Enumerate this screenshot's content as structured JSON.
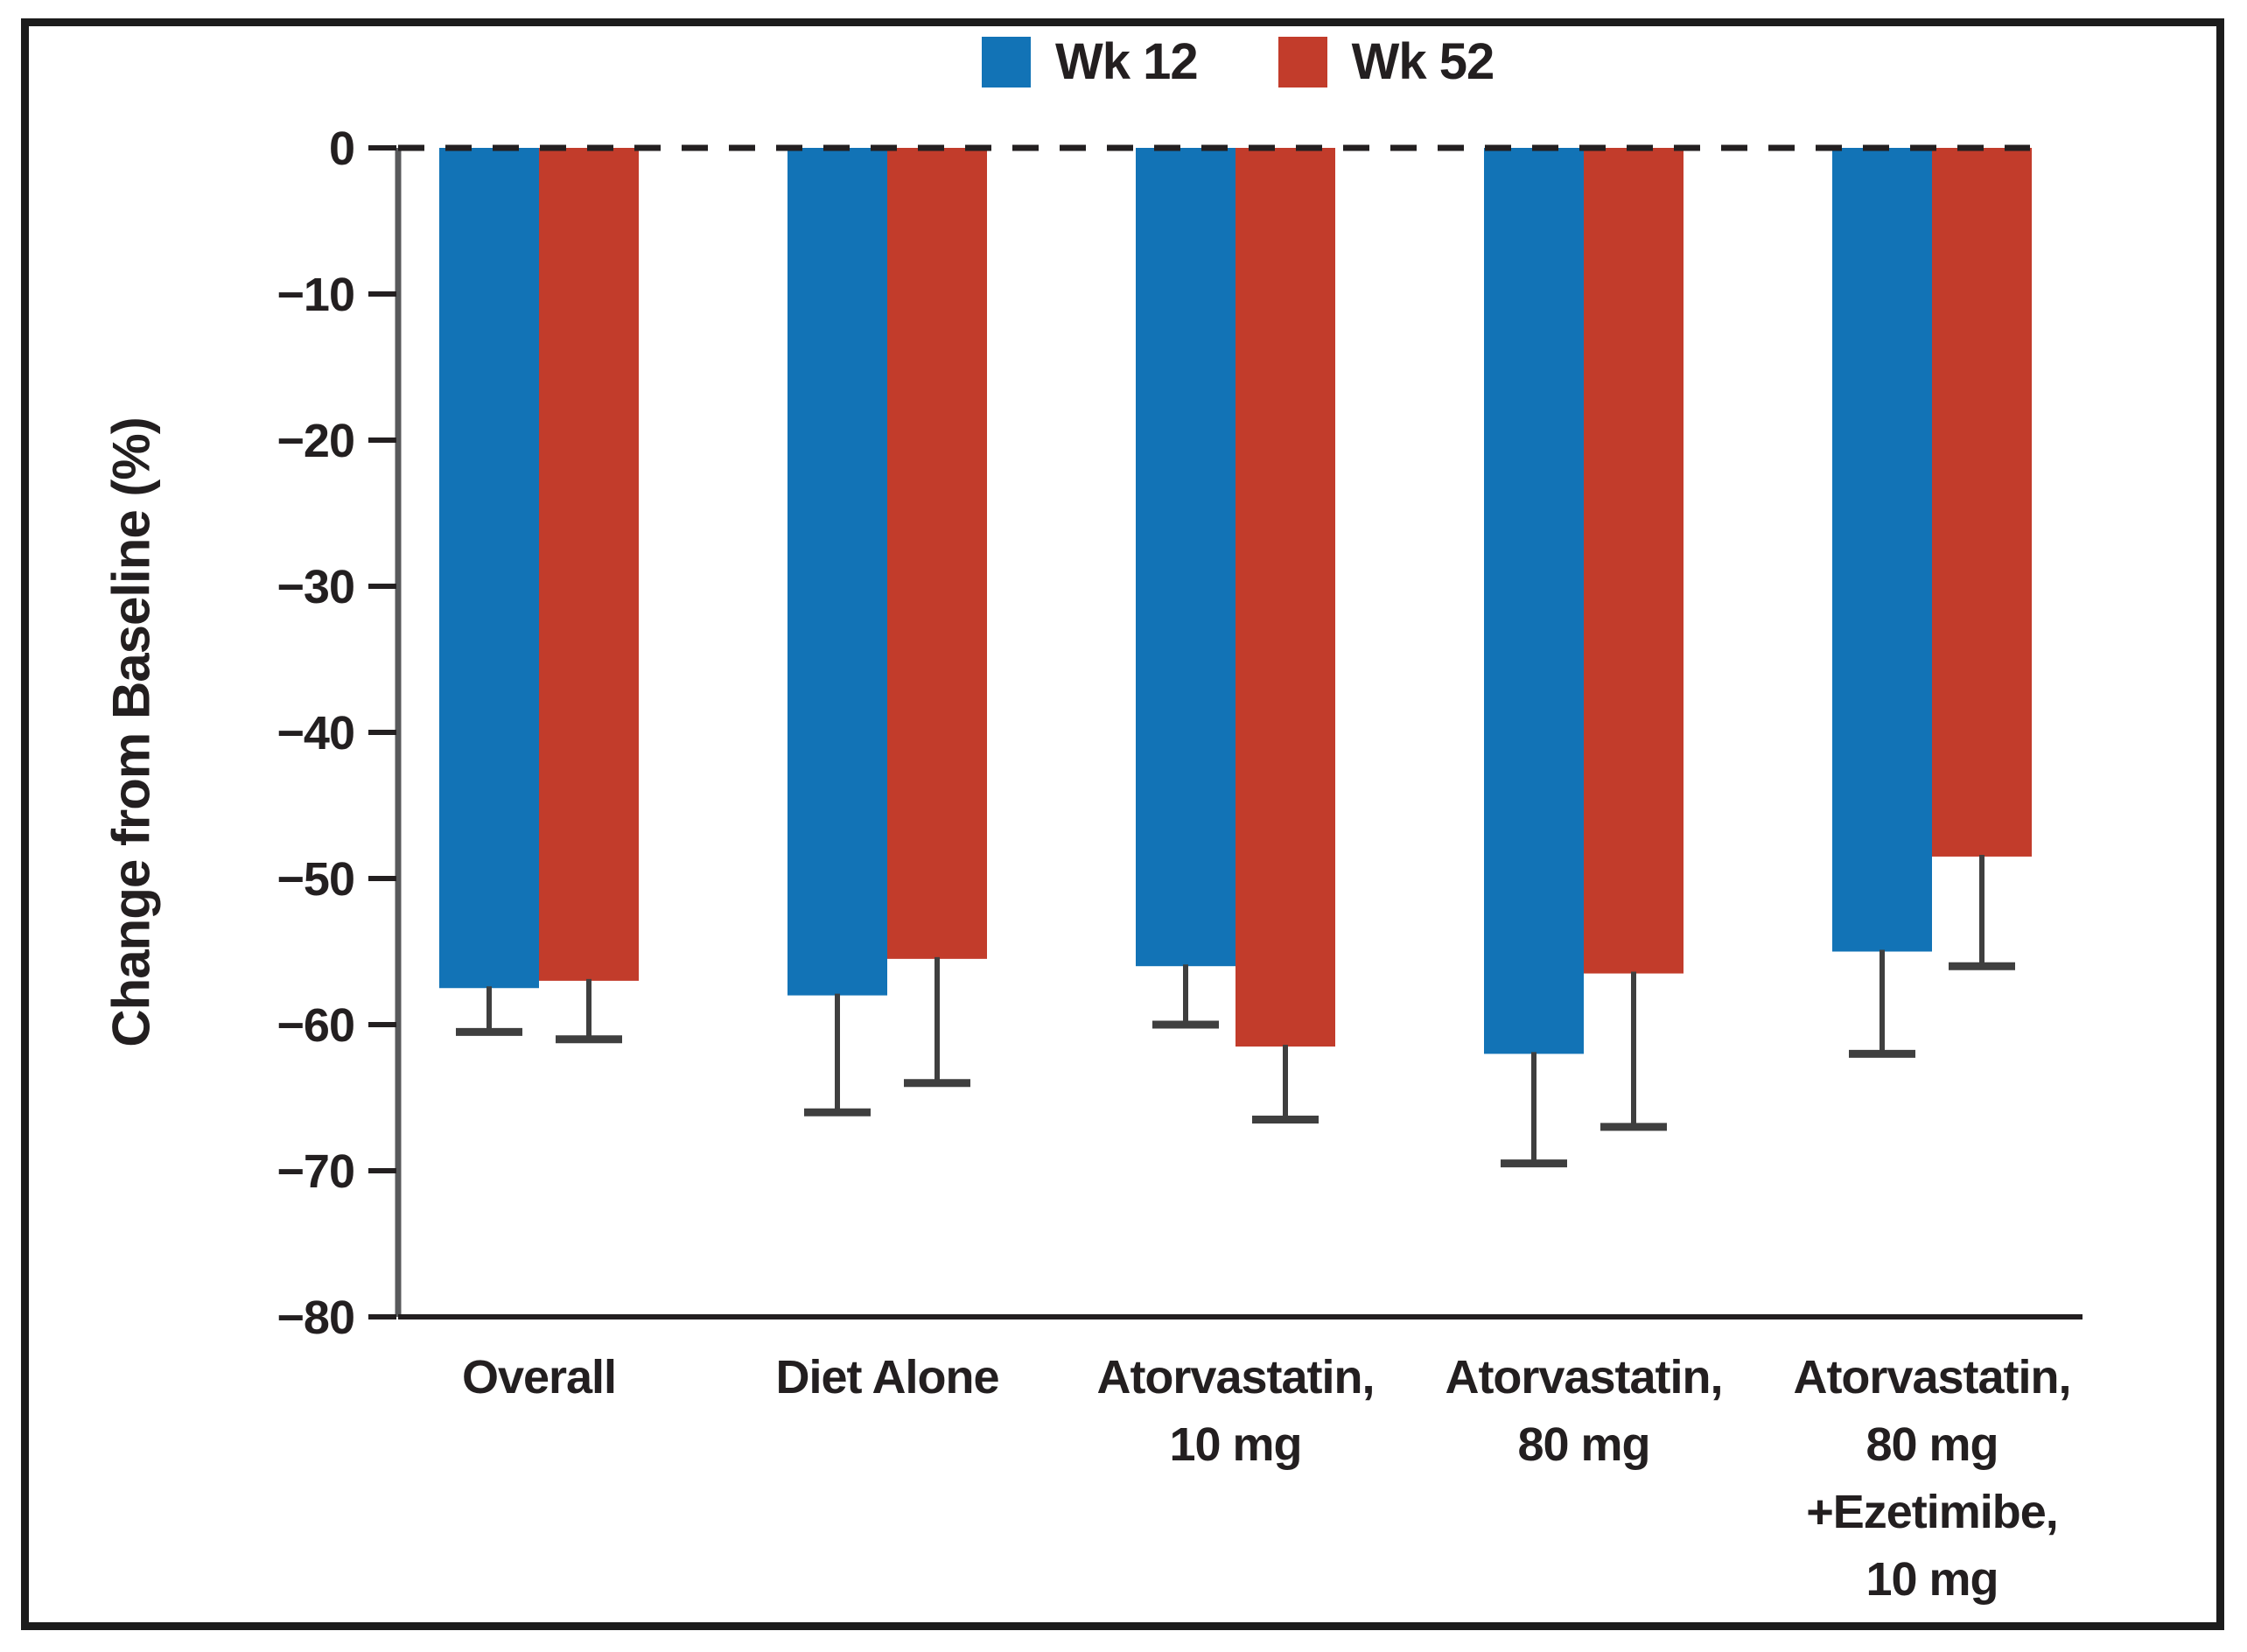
{
  "figure": {
    "legend": [
      {
        "label": "Wk 12",
        "color": "#1273b6"
      },
      {
        "label": "Wk 52",
        "color": "#c23c2b"
      }
    ]
  },
  "chart_data": {
    "type": "bar",
    "title": "",
    "xlabel": "",
    "ylabel": "Change from Baseline (%)",
    "ylim": [
      -80,
      0
    ],
    "grid": false,
    "legend_position": "top",
    "zero_line_style": "dashed",
    "error_bars": "downward, capped",
    "y_tick_values": [
      0,
      -10,
      -20,
      -30,
      -40,
      -50,
      -60,
      -70,
      -80
    ],
    "y_tick_labels": [
      "0",
      "−10",
      "−20",
      "−30",
      "−40",
      "−50",
      "−60",
      "−70",
      "−80"
    ],
    "categories": [
      "Overall",
      "Diet Alone",
      "Atorvastatin,\n10 mg",
      "Atorvastatin,\n80 mg",
      "Atorvastatin,\n80 mg\n+Ezetimibe,\n10 mg"
    ],
    "series": [
      {
        "name": "Wk 12",
        "color": "#1273b6",
        "values": [
          -57.5,
          -58,
          -56,
          -62,
          -55
        ],
        "error_low": [
          -60.5,
          -66,
          -60,
          -69.5,
          -62
        ]
      },
      {
        "name": "Wk 52",
        "color": "#c23c2b",
        "values": [
          -57,
          -55.5,
          -61.5,
          -56.5,
          -48.5
        ],
        "error_low": [
          -61,
          -64,
          -66.5,
          -67,
          -56
        ]
      }
    ]
  }
}
